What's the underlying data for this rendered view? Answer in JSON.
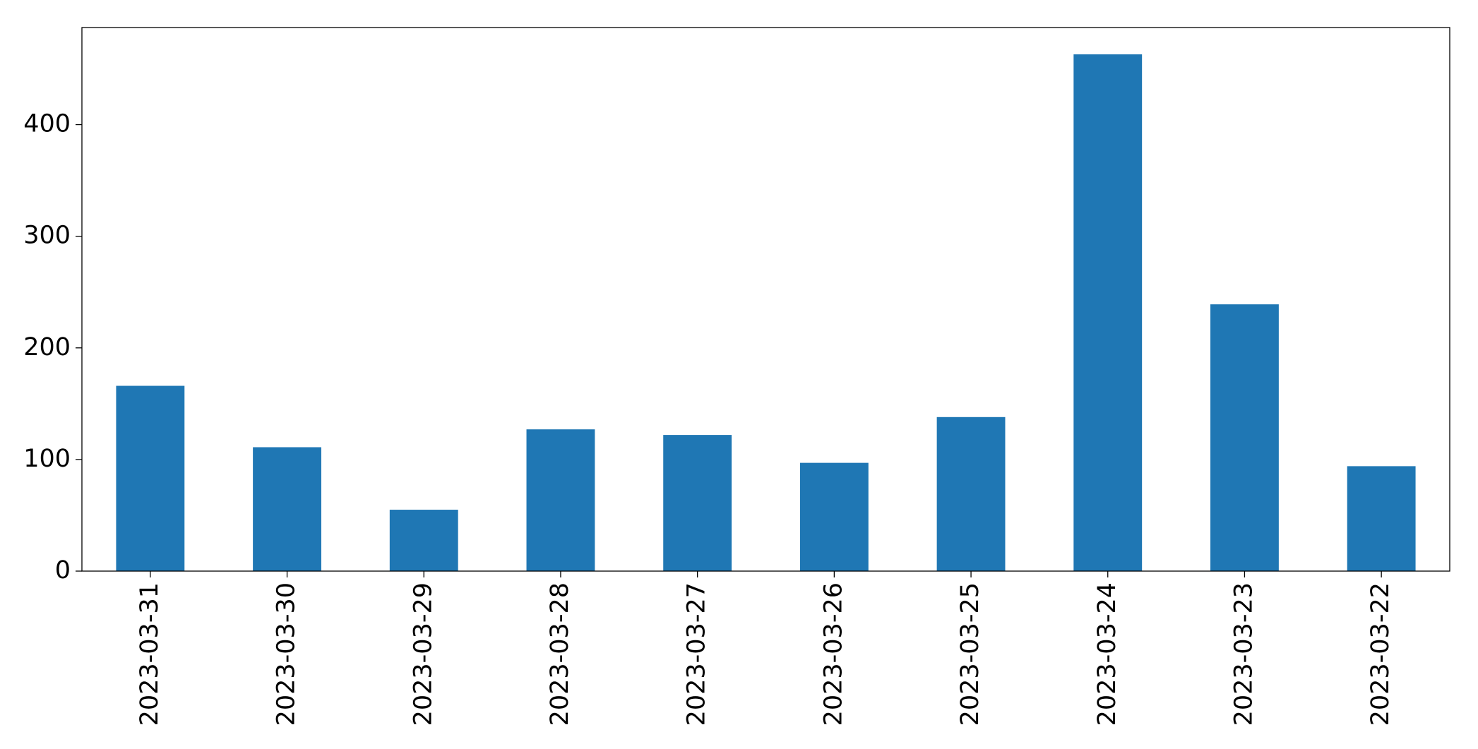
{
  "chart_data": {
    "type": "bar",
    "categories": [
      "2023-03-31",
      "2023-03-30",
      "2023-03-29",
      "2023-03-28",
      "2023-03-27",
      "2023-03-26",
      "2023-03-25",
      "2023-03-24",
      "2023-03-23",
      "2023-03-22"
    ],
    "values": [
      166,
      111,
      55,
      127,
      122,
      97,
      138,
      463,
      239,
      94
    ],
    "color": "#1f77b4",
    "ylim": [
      0,
      487
    ],
    "yticks": [
      0,
      100,
      200,
      300,
      400
    ],
    "grid": false
  }
}
